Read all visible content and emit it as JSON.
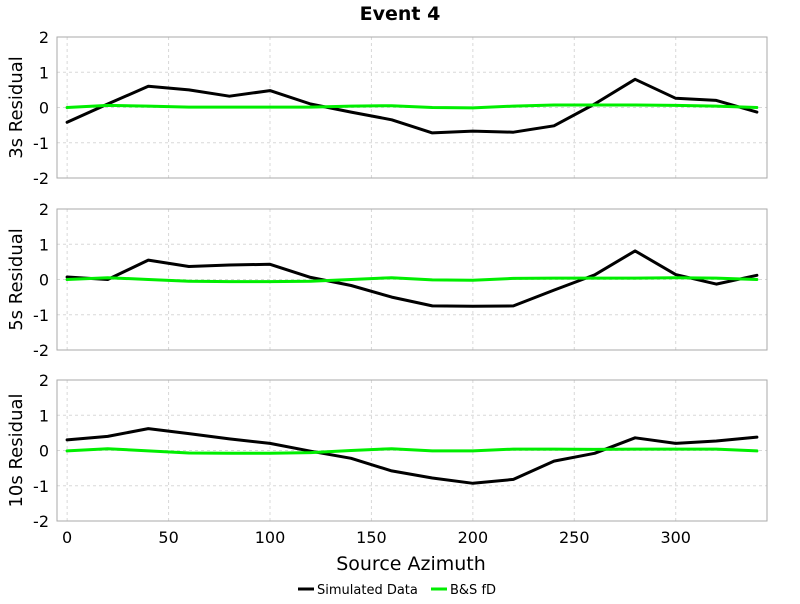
{
  "title": "Event 4",
  "xlabel": "Source Azimuth",
  "legend": {
    "placement": "bottom-center",
    "entries": [
      {
        "name": "Simulated Data",
        "color": "#000000"
      },
      {
        "name": "B&S fD",
        "color": "#00ee00"
      }
    ]
  },
  "chart_data": [
    {
      "type": "line",
      "title": "Event 4",
      "ylabel": "3s Residual",
      "xlabel": "",
      "xlim": [
        -5,
        345
      ],
      "ylim": [
        -2,
        2
      ],
      "grid": true,
      "x": [
        0,
        20,
        40,
        60,
        80,
        100,
        120,
        140,
        160,
        180,
        200,
        220,
        240,
        260,
        280,
        300,
        320,
        340
      ],
      "xticks": [
        0,
        50,
        100,
        150,
        200,
        250,
        300
      ],
      "yticks": [
        -2,
        -1,
        0,
        1,
        2
      ],
      "series": [
        {
          "name": "Simulated Data",
          "color": "#000000",
          "values": [
            -0.42,
            0.1,
            0.6,
            0.5,
            0.32,
            0.48,
            0.1,
            -0.13,
            -0.35,
            -0.72,
            -0.67,
            -0.7,
            -0.52,
            0.1,
            0.8,
            0.26,
            0.2,
            -0.13
          ]
        },
        {
          "name": "B&S fD",
          "color": "#00ee00",
          "values": [
            0.0,
            0.06,
            0.04,
            0.01,
            0.01,
            0.01,
            0.01,
            0.04,
            0.05,
            0.0,
            -0.01,
            0.04,
            0.07,
            0.07,
            0.07,
            0.06,
            0.04,
            0.0
          ]
        }
      ]
    },
    {
      "type": "line",
      "ylabel": "5s Residual",
      "xlabel": "",
      "xlim": [
        -5,
        345
      ],
      "ylim": [
        -2,
        2
      ],
      "grid": true,
      "x": [
        0,
        20,
        40,
        60,
        80,
        100,
        120,
        140,
        160,
        180,
        200,
        220,
        240,
        260,
        280,
        300,
        320,
        340
      ],
      "xticks": [
        0,
        50,
        100,
        150,
        200,
        250,
        300
      ],
      "yticks": [
        -2,
        -1,
        0,
        1,
        2
      ],
      "series": [
        {
          "name": "Simulated Data",
          "color": "#000000",
          "values": [
            0.07,
            0.0,
            0.55,
            0.37,
            0.41,
            0.43,
            0.06,
            -0.17,
            -0.5,
            -0.75,
            -0.76,
            -0.75,
            -0.3,
            0.13,
            0.81,
            0.14,
            -0.13,
            0.12
          ]
        },
        {
          "name": "B&S fD",
          "color": "#00ee00",
          "values": [
            0.0,
            0.05,
            0.0,
            -0.05,
            -0.06,
            -0.06,
            -0.05,
            0.0,
            0.05,
            -0.01,
            -0.02,
            0.03,
            0.04,
            0.04,
            0.04,
            0.05,
            0.04,
            0.0
          ]
        }
      ]
    },
    {
      "type": "line",
      "ylabel": "10s Residual",
      "xlabel": "Source Azimuth",
      "xlim": [
        -5,
        345
      ],
      "ylim": [
        -2,
        2
      ],
      "grid": true,
      "x": [
        0,
        20,
        40,
        60,
        80,
        100,
        120,
        140,
        160,
        180,
        200,
        220,
        240,
        260,
        280,
        300,
        320,
        340
      ],
      "xticks": [
        0,
        50,
        100,
        150,
        200,
        250,
        300
      ],
      "yticks": [
        -2,
        -1,
        0,
        1,
        2
      ],
      "series": [
        {
          "name": "Simulated Data",
          "color": "#000000",
          "values": [
            0.3,
            0.4,
            0.62,
            0.48,
            0.33,
            0.2,
            -0.02,
            -0.22,
            -0.58,
            -0.78,
            -0.93,
            -0.82,
            -0.3,
            -0.08,
            0.36,
            0.2,
            0.27,
            0.38
          ]
        },
        {
          "name": "B&S fD",
          "color": "#00ee00",
          "values": [
            -0.01,
            0.05,
            -0.01,
            -0.07,
            -0.08,
            -0.08,
            -0.06,
            0.0,
            0.05,
            -0.01,
            -0.01,
            0.04,
            0.04,
            0.03,
            0.04,
            0.04,
            0.04,
            -0.01
          ]
        }
      ]
    }
  ]
}
